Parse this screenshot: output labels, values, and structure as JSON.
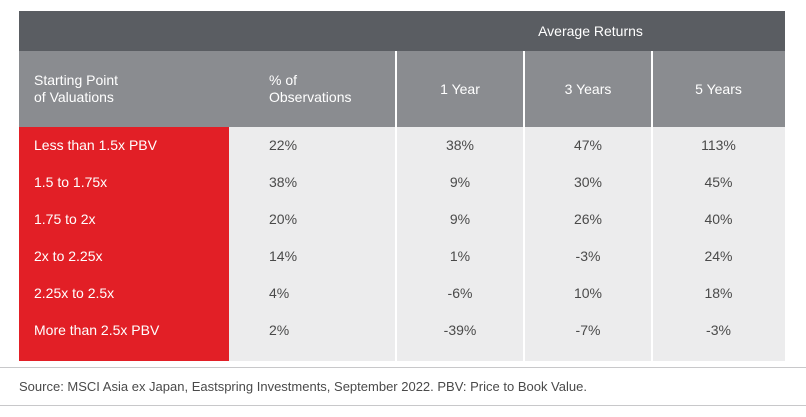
{
  "table": {
    "group_header": "Average Returns",
    "headers": [
      "Starting Point of Valuations",
      "% of Observations",
      "1 Year",
      "3 Years",
      "5 Years"
    ],
    "header_lines": {
      "col0": [
        "Starting Point",
        "of Valuations"
      ],
      "col1": [
        "% of",
        "Observations"
      ]
    },
    "rows": [
      [
        "Less than 1.5x PBV",
        "22%",
        "38%",
        "47%",
        "113%"
      ],
      [
        "1.5 to 1.75x",
        "38%",
        "9%",
        "30%",
        "45%"
      ],
      [
        "1.75 to 2x",
        "20%",
        "9%",
        "26%",
        "40%"
      ],
      [
        "2x to 2.25x",
        "14%",
        "1%",
        "-3%",
        "24%"
      ],
      [
        "2.25x to 2.5x",
        "4%",
        "-6%",
        "10%",
        "18%"
      ],
      [
        "More than 2.5x PBV",
        "2%",
        "-39%",
        "-7%",
        "-3%"
      ]
    ]
  },
  "source": "Source: MSCI Asia ex Japan, Eastspring Investments, September 2022. PBV: Price to Book Value.",
  "colors": {
    "header_dark": "#5a5d62",
    "header_light": "#8a8c90",
    "accent_red": "#e21f26",
    "body_grey": "#ececed"
  }
}
